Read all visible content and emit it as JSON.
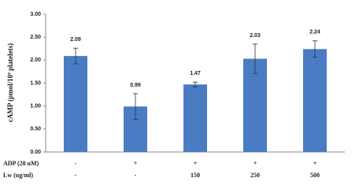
{
  "chart_data": {
    "type": "bar",
    "y_label": "cAMP (pmol/10⁹ platelets)",
    "categories": [
      null,
      null,
      null,
      null,
      null
    ],
    "values": [
      2.09,
      0.99,
      1.47,
      2.03,
      2.24
    ],
    "errors": [
      0.17,
      0.28,
      0.05,
      0.32,
      0.18
    ],
    "color": "#4a7cc4",
    "ylim": [
      0,
      3
    ],
    "yticks": [
      {
        "value": 0,
        "label": "0.00"
      },
      {
        "value": 0.5,
        "label": "0.50"
      },
      {
        "value": 1,
        "label": "1.00"
      },
      {
        "value": 1.5,
        "label": "1.50"
      },
      {
        "value": 2,
        "label": "2.00"
      },
      {
        "value": 2.5,
        "label": "2.50"
      },
      {
        "value": 3,
        "label": "3.00"
      }
    ],
    "table": [
      {
        "label": "ADP (20 uM)",
        "cells": [
          "-",
          "+",
          "+",
          "+",
          "+"
        ]
      },
      {
        "label": "Lw (ug/ml)",
        "cells": [
          "-",
          "-",
          "150",
          "250",
          "500"
        ]
      }
    ]
  }
}
